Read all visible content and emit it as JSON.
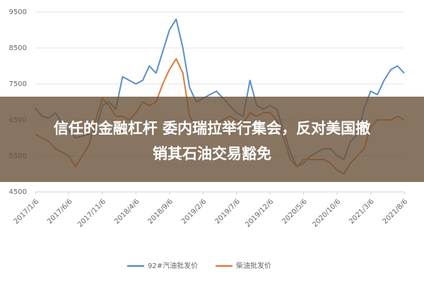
{
  "chart_data": {
    "type": "line",
    "annotations": [
      "信任的金融杠杆 委内瑞拉举行集会，反对美国撤",
      "销其石油交易豁免"
    ],
    "categories": [
      "2017/1/6",
      null,
      null,
      null,
      null,
      "2017/6/6",
      null,
      null,
      null,
      null,
      "2017/11/6",
      null,
      null,
      null,
      null,
      "2018/4/6",
      null,
      null,
      null,
      null,
      "2018/9/6",
      null,
      null,
      null,
      null,
      "2019/2/6",
      null,
      null,
      null,
      null,
      "2019/7/6",
      null,
      null,
      null,
      null,
      "2019/12/6",
      null,
      null,
      null,
      null,
      "2020/5/6",
      null,
      null,
      null,
      null,
      "2020/10/6",
      null,
      null,
      null,
      null,
      "2021/3/6",
      null,
      null,
      null,
      null,
      "2021/8/6"
    ],
    "series": [
      {
        "name": "92#汽油批发价",
        "color": "#5b8ec9",
        "values": [
          6830,
          6600,
          6550,
          6700,
          6400,
          6200,
          6000,
          6050,
          6100,
          6200,
          6900,
          7000,
          6800,
          7700,
          7600,
          7500,
          7600,
          8000,
          7800,
          8400,
          9000,
          9300,
          8500,
          7400,
          7000,
          7100,
          7200,
          7300,
          7100,
          6900,
          6700,
          6600,
          7600,
          6900,
          6800,
          6900,
          6800,
          6200,
          5600,
          5200,
          5300,
          5500,
          5600,
          5700,
          5700,
          5500,
          5400,
          5900,
          6100,
          6800,
          7300,
          7200,
          7600,
          7900,
          8000,
          7800
        ]
      },
      {
        "name": "柴油批发价",
        "color": "#e0793a",
        "values": [
          6100,
          6000,
          5900,
          5700,
          5600,
          5500,
          5200,
          5500,
          5800,
          6500,
          7100,
          6900,
          6600,
          6600,
          6500,
          6700,
          7000,
          6900,
          7000,
          7500,
          7900,
          8200,
          7800,
          6600,
          6300,
          6200,
          6300,
          6400,
          6500,
          6600,
          6500,
          6400,
          6700,
          6600,
          6700,
          6700,
          6500,
          6000,
          5400,
          5200,
          5400,
          5400,
          5400,
          5400,
          5300,
          5100,
          5000,
          5300,
          5500,
          5700,
          6300,
          6500,
          6500,
          6500,
          6600,
          6500
        ]
      }
    ],
    "ylim": [
      4500,
      9500
    ],
    "yticks": [
      4500,
      5500,
      6500,
      7500,
      8500,
      9500
    ],
    "grid": true,
    "legend": "bottom"
  }
}
